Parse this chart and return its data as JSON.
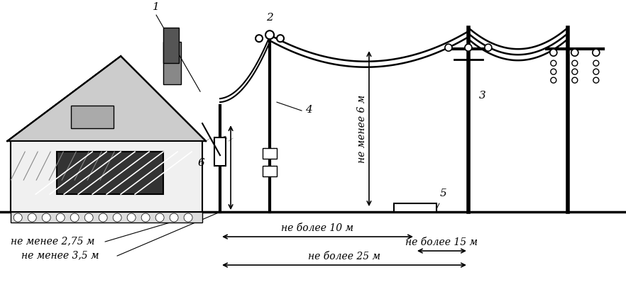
{
  "fig_width": 8.82,
  "fig_height": 4.29,
  "bg_color": "#ffffff",
  "line_color": "#000000",
  "labels": {
    "label1": "1",
    "label2": "2",
    "label3": "3",
    "label4": "4",
    "label5": "5",
    "label6": "6",
    "dim1": "не менее 2,75 м",
    "dim2": "не менее 3,5 м",
    "dim3": "не более 10 м",
    "dim4": "не более 15 м",
    "dim5": "не более 25 м",
    "dim6": "не менее 6 м"
  }
}
